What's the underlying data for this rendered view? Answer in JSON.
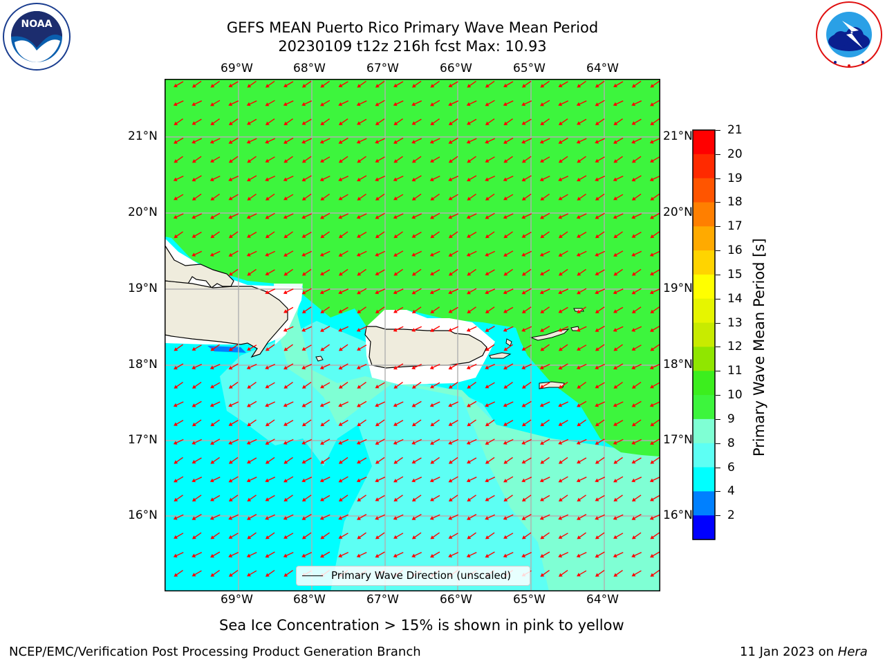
{
  "title_line1": "GEFS MEAN Puerto Rico Primary Wave Mean Period",
  "title_line2": "20230109 t12z 216h fcst   Max: 10.93",
  "logos": {
    "left": {
      "name": "NOAA",
      "ring_text": "NATIONAL OCEANIC AND ATMOSPHERIC ADMINISTRATION · U.S. DEPARTMENT OF COMMERCE"
    },
    "right": {
      "name": "NATIONAL WEATHER SERVICE"
    }
  },
  "map": {
    "lon_labels": [
      "69°W",
      "68°W",
      "67°W",
      "66°W",
      "65°W",
      "64°W"
    ],
    "lat_labels": [
      "21°N",
      "20°N",
      "19°N",
      "18°N",
      "17°N",
      "16°N"
    ],
    "legend_text": "Primary Wave Direction (unscaled)",
    "arrow_color": "#ff0000",
    "land_color": "#efecdd"
  },
  "colorbar": {
    "label": "Primary Wave Mean Period [s]",
    "ticks": [
      "21",
      "20",
      "19",
      "18",
      "17",
      "16",
      "15",
      "14",
      "13",
      "12",
      "11",
      "10",
      "9",
      "8",
      "6",
      "4",
      "2"
    ],
    "colors_top_to_bottom": [
      "#ff0000",
      "#ff2a00",
      "#ff5500",
      "#ff7f00",
      "#ffaa00",
      "#ffd400",
      "#ffff00",
      "#e6f500",
      "#c8eb00",
      "#90e600",
      "#3cee1e",
      "#3df53d",
      "#7fffd4",
      "#5dfff4",
      "#00ffff",
      "#0080ff",
      "#0000ff"
    ]
  },
  "sea_ice_note": "Sea Ice Concentration > 15% is shown in pink to yellow",
  "footer_left": "NCEP/EMC/Verification Post Processing Product Generation Branch",
  "footer_date": "11 Jan 2023 on",
  "footer_machine": "Hera"
}
